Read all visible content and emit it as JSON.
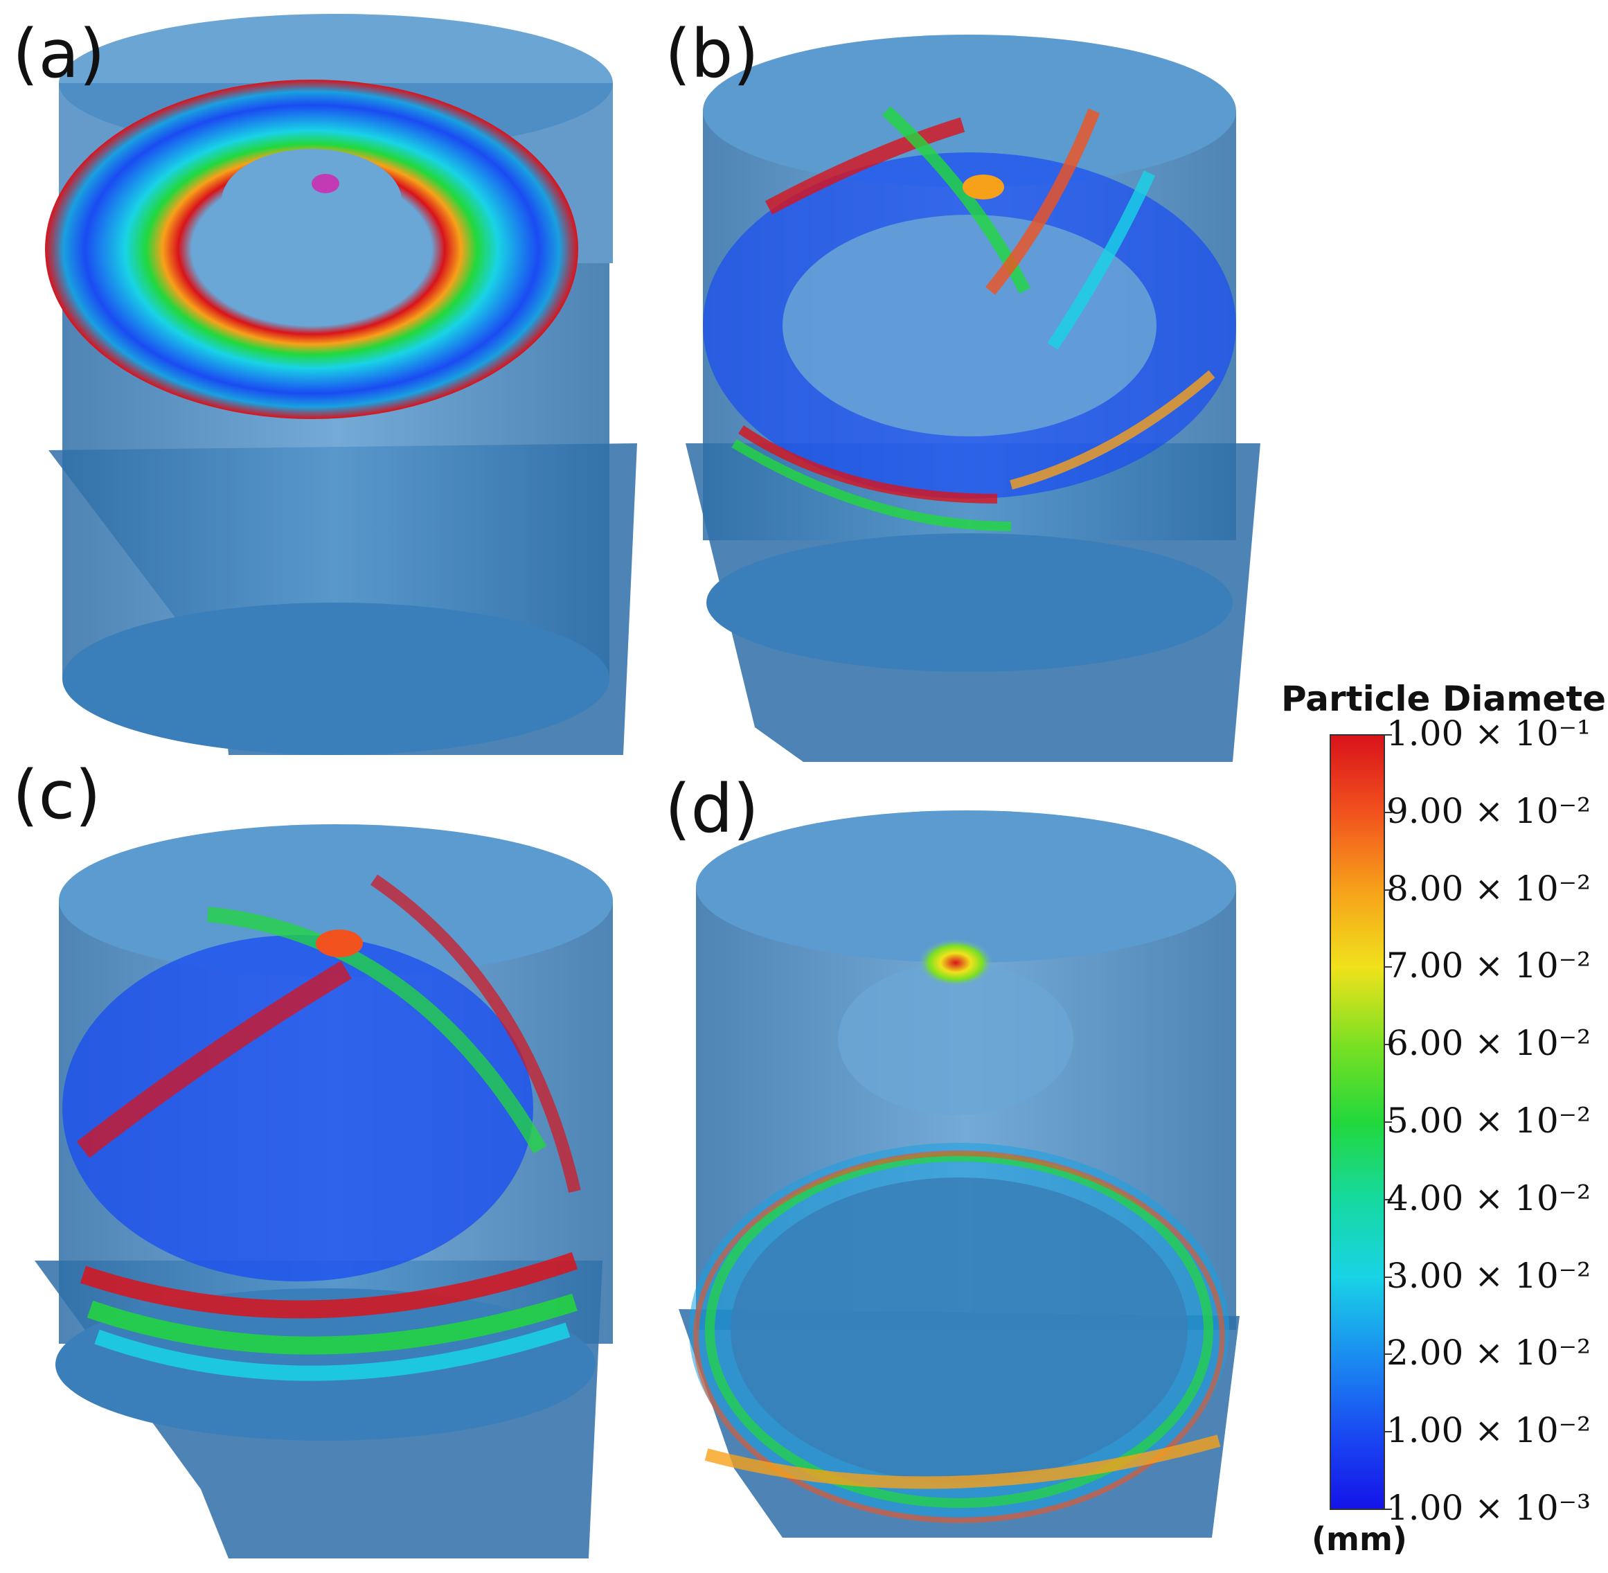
{
  "panels": [
    {
      "label": "(a)"
    },
    {
      "label": "(b)"
    },
    {
      "label": "(c)"
    },
    {
      "label": "(d)"
    }
  ],
  "colorbar": {
    "title": "Particle Diameter",
    "unit": "(mm)",
    "ticks": [
      "1.00 × 10⁻¹",
      "9.00 × 10⁻²",
      "8.00 × 10⁻²",
      "7.00 × 10⁻²",
      "6.00 × 10⁻²",
      "5.00 × 10⁻²",
      "4.00 × 10⁻²",
      "3.00 × 10⁻²",
      "2.00 × 10⁻²",
      "1.00 × 10⁻²",
      "1.00 × 10⁻³"
    ],
    "gradient_top_to_bottom": [
      "#d9131b",
      "#f2521e",
      "#f7a11a",
      "#f0e21c",
      "#7be022",
      "#22d83c",
      "#16d9a0",
      "#19d3e6",
      "#1a8ff0",
      "#1a4bf2",
      "#1414e8"
    ]
  },
  "colors": {
    "vessel": "#3f87c4",
    "vessel_dark": "#2f6fa8",
    "vessel_light": "#6aa6d6"
  }
}
